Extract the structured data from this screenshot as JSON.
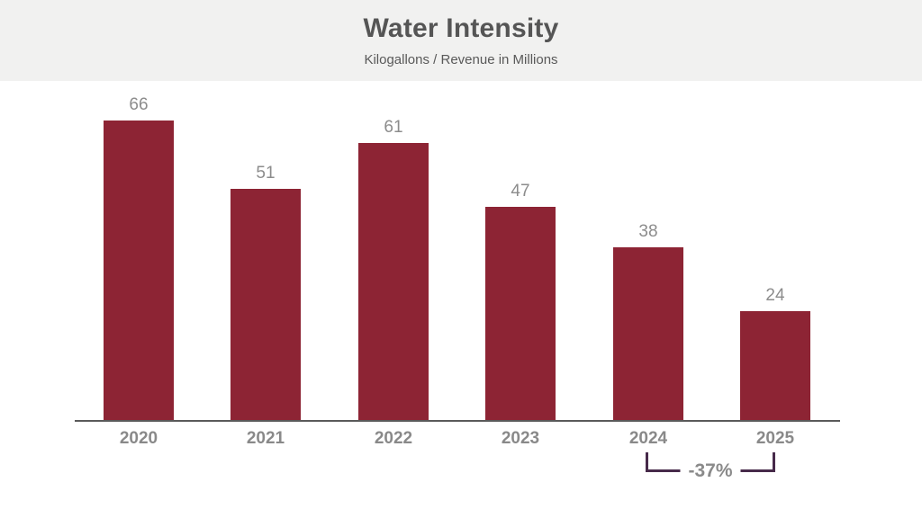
{
  "header": {
    "title": "Water Intensity",
    "subtitle": "Kilogallons / Revenue in Millions"
  },
  "annotation": {
    "change_label": "-37%",
    "from_category": "2024",
    "to_category": "2025"
  },
  "colors": {
    "bar": "#8D2434",
    "bracket": "#472A4A",
    "header_bg": "#F1F1F0",
    "title_text": "#555555",
    "label_text": "#8C8C8C",
    "axis_line": "#5A5A5A"
  },
  "chart_data": {
    "type": "bar",
    "title": "Water Intensity",
    "subtitle": "Kilogallons / Revenue in Millions",
    "categories": [
      "2020",
      "2021",
      "2022",
      "2023",
      "2024",
      "2025"
    ],
    "values": [
      66,
      51,
      61,
      47,
      38,
      24
    ],
    "xlabel": "",
    "ylabel": "Kilogallons / Revenue in Millions",
    "ylim": [
      0,
      70
    ],
    "grid": false,
    "legend": false,
    "value_labels_shown": true,
    "annotations": [
      {
        "label": "-37%",
        "from": "2024",
        "to": "2025"
      }
    ]
  }
}
